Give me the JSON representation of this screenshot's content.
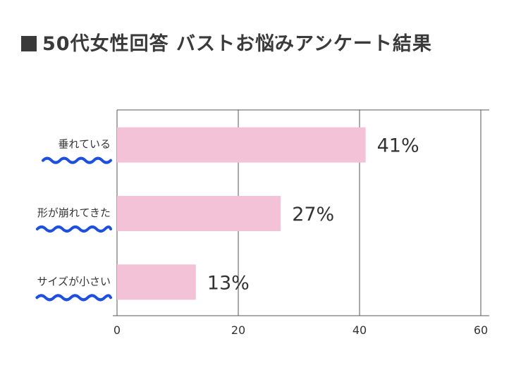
{
  "title": "50代女性回答 バストお悩みアンケート結果",
  "title_mark": "■",
  "emphasis_dots": "・・・",
  "chart_data": {
    "type": "bar",
    "orientation": "horizontal",
    "title": "50代女性回答 バストお悩みアンケート結果",
    "categories": [
      "垂れている",
      "形が崩れてきた",
      "サイズが小さい"
    ],
    "values": [
      41,
      27,
      13
    ],
    "value_labels": [
      "41%",
      "27%",
      "13%"
    ],
    "xlim": [
      0,
      60
    ],
    "xticks": [
      0,
      20,
      40,
      60
    ],
    "xlabel": "",
    "ylabel": "",
    "grid": true,
    "bar_color": "#f4c2d7",
    "underline_color": "#1e50e0"
  }
}
